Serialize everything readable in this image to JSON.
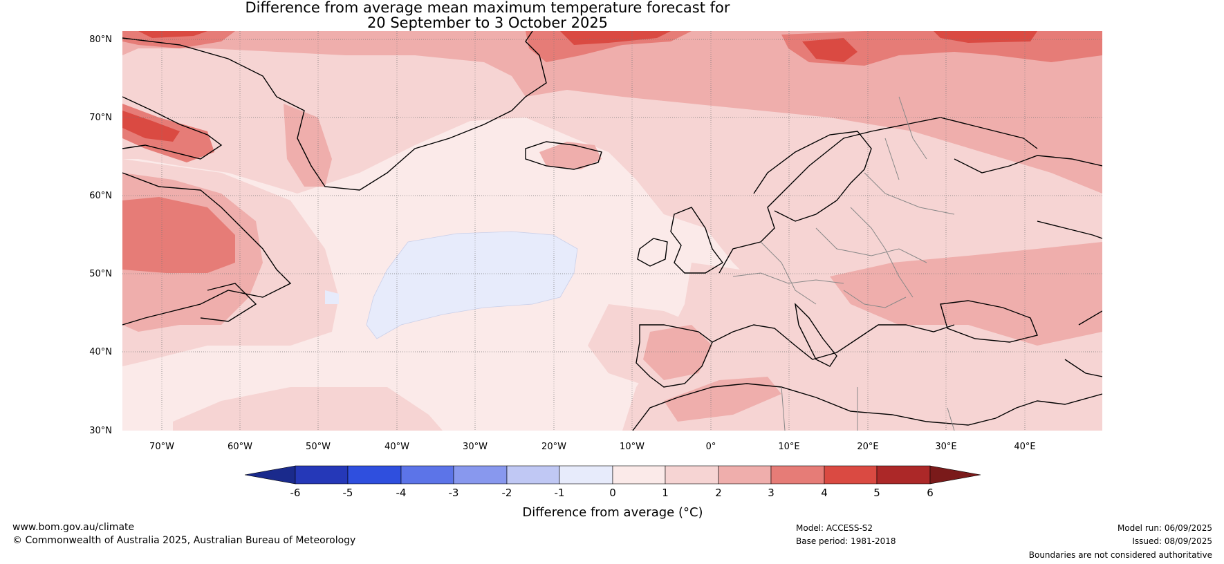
{
  "title_line1": "Difference from average mean maximum temperature forecast for",
  "title_line2": "20 September to 3 October 2025",
  "map": {
    "lat_labels": [
      "80°N",
      "70°N",
      "60°N",
      "50°N",
      "40°N",
      "30°N"
    ],
    "lon_labels": [
      "70°W",
      "60°W",
      "50°W",
      "40°W",
      "30°W",
      "20°W",
      "10°W",
      "0°",
      "10°E",
      "20°E",
      "30°E",
      "40°E"
    ],
    "extent": {
      "lon": [
        -75,
        50
      ],
      "lat": [
        30,
        81
      ]
    }
  },
  "colorbar": {
    "label": "Difference from average (°C)",
    "ticks": [
      "-6",
      "-5",
      "-4",
      "-3",
      "-2",
      "-1",
      "0",
      "1",
      "2",
      "3",
      "4",
      "5",
      "6"
    ],
    "colors": {
      "below_-6": "#1a2a8c",
      "-6_-5": "#2538b8",
      "-5_-4": "#2f4fde",
      "-4_-3": "#5c74e8",
      "-3_-2": "#8898ee",
      "-2_-1": "#c0c8f4",
      "-1_0": "#e7ebfb",
      "0_1": "#fbeae9",
      "1_2": "#f6d4d3",
      "2_3": "#efaeac",
      "3_4": "#e67c77",
      "4_5": "#da4a42",
      "5_6": "#ac2828",
      "above_6": "#7a1a1a"
    }
  },
  "footer": {
    "website": "www.bom.gov.au/climate",
    "copyright": "© Commonwealth of Australia 2025, Australian Bureau of Meteorology",
    "model": "Model: ACCESS-S2",
    "base_period": "Base period: 1981-2018",
    "model_run": "Model run: 06/09/2025",
    "issued": "Issued: 08/09/2025",
    "disclaimer": "Boundaries are not considered authoritative"
  }
}
